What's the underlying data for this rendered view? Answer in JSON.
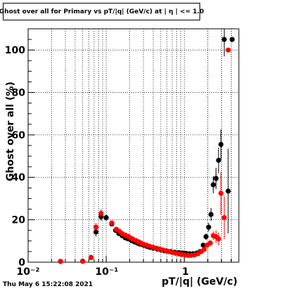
{
  "chart_data": {
    "type": "scatter",
    "title": "Ghost over all for Primary vs pT/|q| (GeV/c) at | η | <= 1.0",
    "xlabel": "pT/|q| (GeV/c)",
    "ylabel": "Ghost over all (%)",
    "xscale": "log",
    "xlim": [
      0.01,
      5
    ],
    "ylim": [
      0,
      110
    ],
    "grid": true,
    "x_tick_labels": [
      "10⁻²",
      "10⁻¹",
      "1"
    ],
    "y_tick_labels": [
      "0",
      "20",
      "40",
      "60",
      "80",
      "100"
    ],
    "series": [
      {
        "color": "#000000",
        "points": [
          [
            0.026,
            0.4,
            0
          ],
          [
            0.05,
            0.5,
            0
          ],
          [
            0.064,
            2.2,
            1
          ],
          [
            0.074,
            14.2,
            2
          ],
          [
            0.086,
            21.5,
            2
          ],
          [
            0.1,
            21,
            1.5
          ],
          [
            0.118,
            18,
            1
          ],
          [
            0.132,
            15,
            1
          ],
          [
            0.145,
            13.5,
            0.8
          ],
          [
            0.16,
            12.5,
            0.8
          ],
          [
            0.175,
            11.5,
            0.6
          ],
          [
            0.19,
            11,
            0.6
          ],
          [
            0.21,
            10.2,
            0.5
          ],
          [
            0.23,
            9.6,
            0.5
          ],
          [
            0.25,
            9,
            0.4
          ],
          [
            0.27,
            8.5,
            0.4
          ],
          [
            0.3,
            8,
            0.4
          ],
          [
            0.33,
            7.5,
            0.3
          ],
          [
            0.36,
            7,
            0.3
          ],
          [
            0.4,
            6.6,
            0.3
          ],
          [
            0.45,
            6.2,
            0.3
          ],
          [
            0.5,
            5.8,
            0.3
          ],
          [
            0.55,
            5.4,
            0.3
          ],
          [
            0.6,
            5.2,
            0.3
          ],
          [
            0.67,
            5,
            0.3
          ],
          [
            0.75,
            4.7,
            0.3
          ],
          [
            0.85,
            4.5,
            0.3
          ],
          [
            0.95,
            4.3,
            0.3
          ],
          [
            1.05,
            4.2,
            0.3
          ],
          [
            1.17,
            4,
            0.3
          ],
          [
            1.3,
            4,
            0.3
          ],
          [
            1.45,
            4.3,
            0.4
          ],
          [
            1.6,
            5,
            0.5
          ],
          [
            1.75,
            8,
            0.8
          ],
          [
            1.9,
            12,
            1.5
          ],
          [
            2.05,
            16.5,
            2
          ],
          [
            2.2,
            22.5,
            3
          ],
          [
            2.35,
            36.5,
            4
          ],
          [
            2.55,
            39.5,
            5
          ],
          [
            2.75,
            48,
            6
          ],
          [
            2.95,
            55.5,
            7
          ],
          [
            3.25,
            105,
            8
          ],
          [
            3.65,
            33.5,
            20
          ],
          [
            4.1,
            105,
            0
          ]
        ]
      },
      {
        "color": "#ff0000",
        "points": [
          [
            0.026,
            0.3,
            0
          ],
          [
            0.05,
            0.4,
            0
          ],
          [
            0.064,
            2.3,
            1
          ],
          [
            0.074,
            16.5,
            2
          ],
          [
            0.086,
            23,
            2
          ],
          [
            0.118,
            18.5,
            1
          ],
          [
            0.135,
            15.5,
            1
          ],
          [
            0.148,
            14.5,
            0.8
          ],
          [
            0.16,
            13.5,
            0.8
          ],
          [
            0.175,
            12.8,
            0.6
          ],
          [
            0.19,
            12.2,
            0.6
          ],
          [
            0.205,
            11.5,
            0.5
          ],
          [
            0.22,
            10.8,
            0.5
          ],
          [
            0.24,
            10.2,
            0.4
          ],
          [
            0.26,
            9.6,
            0.4
          ],
          [
            0.28,
            9,
            0.4
          ],
          [
            0.3,
            8.5,
            0.4
          ],
          [
            0.33,
            8,
            0.3
          ],
          [
            0.36,
            7.5,
            0.3
          ],
          [
            0.4,
            7,
            0.3
          ],
          [
            0.44,
            6.6,
            0.3
          ],
          [
            0.48,
            6.2,
            0.3
          ],
          [
            0.53,
            5.8,
            0.3
          ],
          [
            0.58,
            5.4,
            0.3
          ],
          [
            0.64,
            5,
            0.3
          ],
          [
            0.7,
            4.6,
            0.3
          ],
          [
            0.77,
            4.2,
            0.3
          ],
          [
            0.85,
            3.9,
            0.3
          ],
          [
            0.93,
            3.6,
            0.3
          ],
          [
            1.02,
            3.4,
            0.3
          ],
          [
            1.12,
            3.2,
            0.3
          ],
          [
            1.22,
            3.2,
            0.3
          ],
          [
            1.35,
            3.4,
            0.3
          ],
          [
            1.5,
            4,
            0.4
          ],
          [
            1.65,
            5,
            0.5
          ],
          [
            1.8,
            6,
            0.8
          ],
          [
            1.95,
            8,
            1
          ],
          [
            2.15,
            9,
            1.5
          ],
          [
            2.35,
            12.5,
            2
          ],
          [
            2.55,
            12,
            3
          ],
          [
            2.75,
            11,
            3
          ],
          [
            2.95,
            32.5,
            10
          ],
          [
            3.25,
            21,
            10
          ],
          [
            3.65,
            100,
            0
          ]
        ]
      }
    ]
  },
  "footer": {
    "timestamp": "Thu May  6 15:22:08 2021"
  }
}
